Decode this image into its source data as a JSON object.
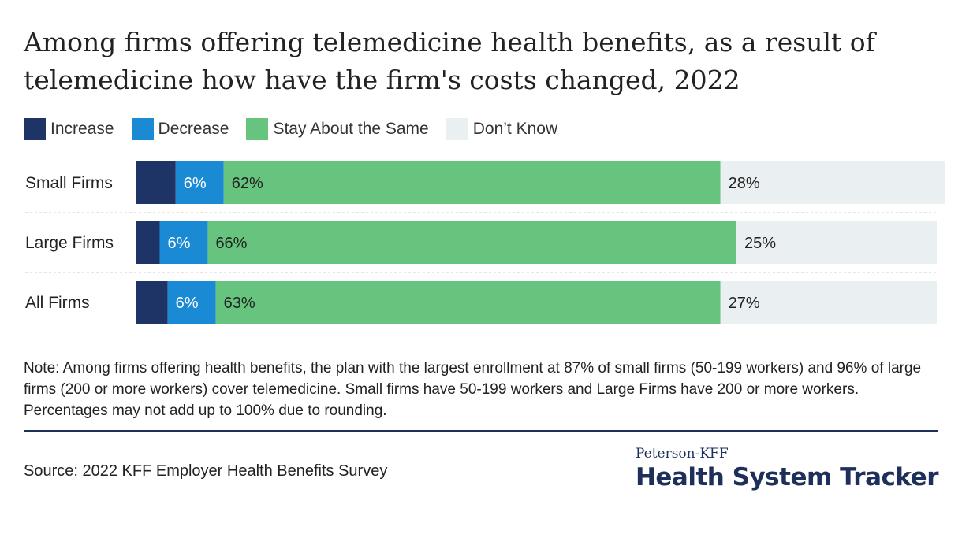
{
  "title": "Among firms offering telemedicine health benefits, as a result of telemedicine how have the firm's costs changed, 2022",
  "legend": [
    {
      "label": "Increase",
      "color": "#1f3466"
    },
    {
      "label": "Decrease",
      "color": "#1a8ad4"
    },
    {
      "label": "Stay About the Same",
      "color": "#66c47e"
    },
    {
      "label": "Don’t Know",
      "color": "#eaeff2"
    }
  ],
  "chart_data": {
    "type": "bar",
    "orientation": "horizontal",
    "stacked": true,
    "categories": [
      "Small Firms",
      "Large Firms",
      "All Firms"
    ],
    "series": [
      {
        "name": "Increase",
        "values": [
          5,
          3,
          4
        ],
        "labels": [
          "",
          "",
          ""
        ],
        "color": "#1f3466"
      },
      {
        "name": "Decrease",
        "values": [
          6,
          6,
          6
        ],
        "labels": [
          "6%",
          "6%",
          "6%"
        ],
        "color": "#1a8ad4"
      },
      {
        "name": "Stay About the Same",
        "values": [
          62,
          66,
          63
        ],
        "labels": [
          "62%",
          "66%",
          "63%"
        ],
        "color": "#66c47e"
      },
      {
        "name": "Don’t Know",
        "values": [
          28,
          25,
          27
        ],
        "labels": [
          "28%",
          "25%",
          "27%"
        ],
        "color": "#eaeff2"
      }
    ],
    "xlim": [
      0,
      100
    ],
    "legend_position": "top-left",
    "grid": false
  },
  "note": "Note: Among firms offering health benefits, the plan with the largest enrollment at 87% of small firms (50-199 workers) and 96% of large firms (200 or more workers) cover telemedicine. Small firms have 50-199 workers and Large Firms have 200 or more workers. Percentages may not add up to 100% due to rounding.",
  "source": "Source: 2022 KFF Employer Health Benefits Survey",
  "brand": {
    "top": "Peterson-KFF",
    "main": "Health System Tracker"
  }
}
